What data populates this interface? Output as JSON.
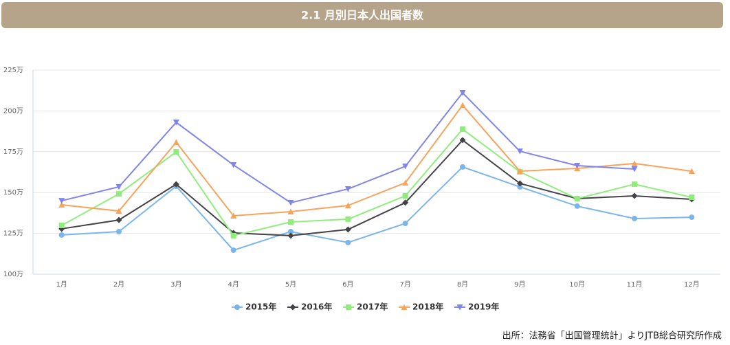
{
  "header": {
    "title": "2.1 月別日本人出国者数"
  },
  "chart_data": {
    "type": "line",
    "categories": [
      "1月",
      "2月",
      "3月",
      "4月",
      "5月",
      "6月",
      "7月",
      "8月",
      "9月",
      "10月",
      "11月",
      "12月"
    ],
    "series": [
      {
        "name": "2015年",
        "color": "#7cb5ec",
        "marker": "circle",
        "values": [
          124.0,
          126.1,
          153.9,
          114.7,
          126.1,
          119.4,
          131.1,
          165.7,
          153.5,
          141.7,
          134.1,
          134.9
        ]
      },
      {
        "name": "2016年",
        "color": "#434348",
        "marker": "diamond",
        "values": [
          127.8,
          133.2,
          155.1,
          125.3,
          123.6,
          127.4,
          143.8,
          182.1,
          155.6,
          146.3,
          148.0,
          145.9
        ]
      },
      {
        "name": "2017年",
        "color": "#90ed7d",
        "marker": "square",
        "values": [
          129.9,
          149.2,
          174.9,
          123.6,
          132.0,
          133.7,
          148.0,
          188.8,
          162.7,
          146.3,
          155.1,
          147.1
        ]
      },
      {
        "name": "2018年",
        "color": "#f7a35c",
        "marker": "triangle",
        "values": [
          142.5,
          138.7,
          180.8,
          135.8,
          138.3,
          142.1,
          156.0,
          203.5,
          163.1,
          164.8,
          167.8,
          163.1
        ]
      },
      {
        "name": "2019年",
        "color": "#8085e9",
        "marker": "triangle-down",
        "values": [
          145.0,
          153.5,
          193.0,
          166.9,
          143.8,
          152.2,
          166.1,
          211.1,
          175.3,
          166.5,
          164.4,
          null
        ]
      }
    ],
    "ylim": [
      100,
      225
    ],
    "yticks": [
      {
        "value": 100,
        "label": "100万"
      },
      {
        "value": 125,
        "label": "125万"
      },
      {
        "value": 150,
        "label": "150万"
      },
      {
        "value": 175,
        "label": "175万"
      },
      {
        "value": 200,
        "label": "200万"
      },
      {
        "value": 225,
        "label": "225万"
      }
    ],
    "grid": true,
    "legend": "bottom"
  },
  "footer": {
    "source": "出所：法務省「出国管理統計」よりJTB総合研究所作成"
  }
}
